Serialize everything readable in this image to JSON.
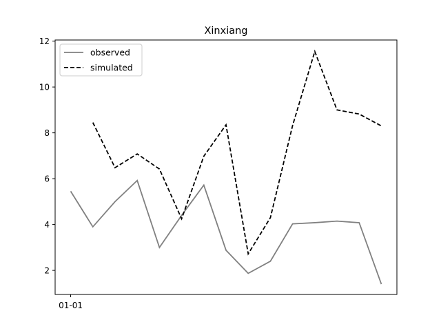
{
  "chart_data": {
    "type": "line",
    "title": "Xinxiang",
    "xlabel": "",
    "ylabel": "",
    "x": [
      0,
      1,
      2,
      3,
      4,
      5,
      6,
      7,
      8,
      9,
      10,
      11,
      12,
      13,
      14
    ],
    "xtick_labels": [
      {
        "x": 0,
        "label": "01-01"
      }
    ],
    "yticks": [
      2,
      4,
      6,
      8,
      10,
      12
    ],
    "ylim": [
      0.95,
      12.05
    ],
    "xlim": [
      -0.7,
      14.7
    ],
    "grid": false,
    "legend_position": "top-left",
    "series": [
      {
        "name": "observed",
        "color": "#808080",
        "style": "solid",
        "values": [
          5.45,
          3.9,
          5.0,
          5.92,
          3.0,
          4.4,
          5.72,
          2.88,
          1.87,
          2.4,
          4.03,
          4.08,
          4.15,
          4.08,
          1.4
        ]
      },
      {
        "name": "simulated",
        "color": "#000000",
        "style": "dashed",
        "values": [
          null,
          8.45,
          6.48,
          7.08,
          6.42,
          4.25,
          6.98,
          8.35,
          2.72,
          4.3,
          8.32,
          11.55,
          9.0,
          8.82,
          8.3
        ]
      }
    ]
  }
}
